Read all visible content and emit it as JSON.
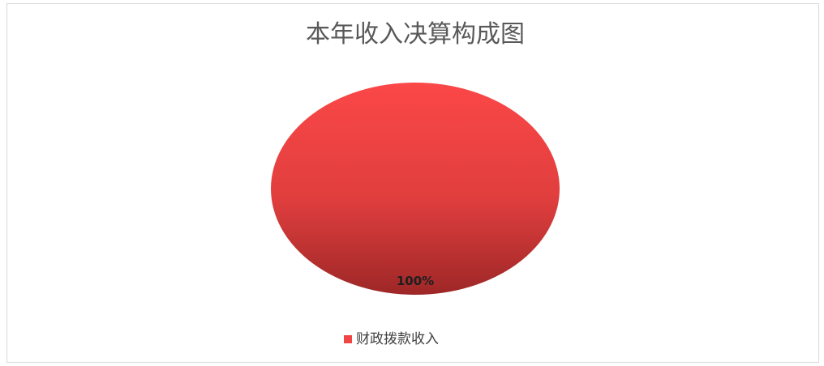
{
  "chart_data": {
    "type": "pie",
    "title": "本年收入决算构成图",
    "slices": [
      {
        "name": "财政拨款收入",
        "value": 100,
        "label": "100%"
      }
    ],
    "legend": "bottom",
    "colors": [
      "#f04545"
    ]
  }
}
